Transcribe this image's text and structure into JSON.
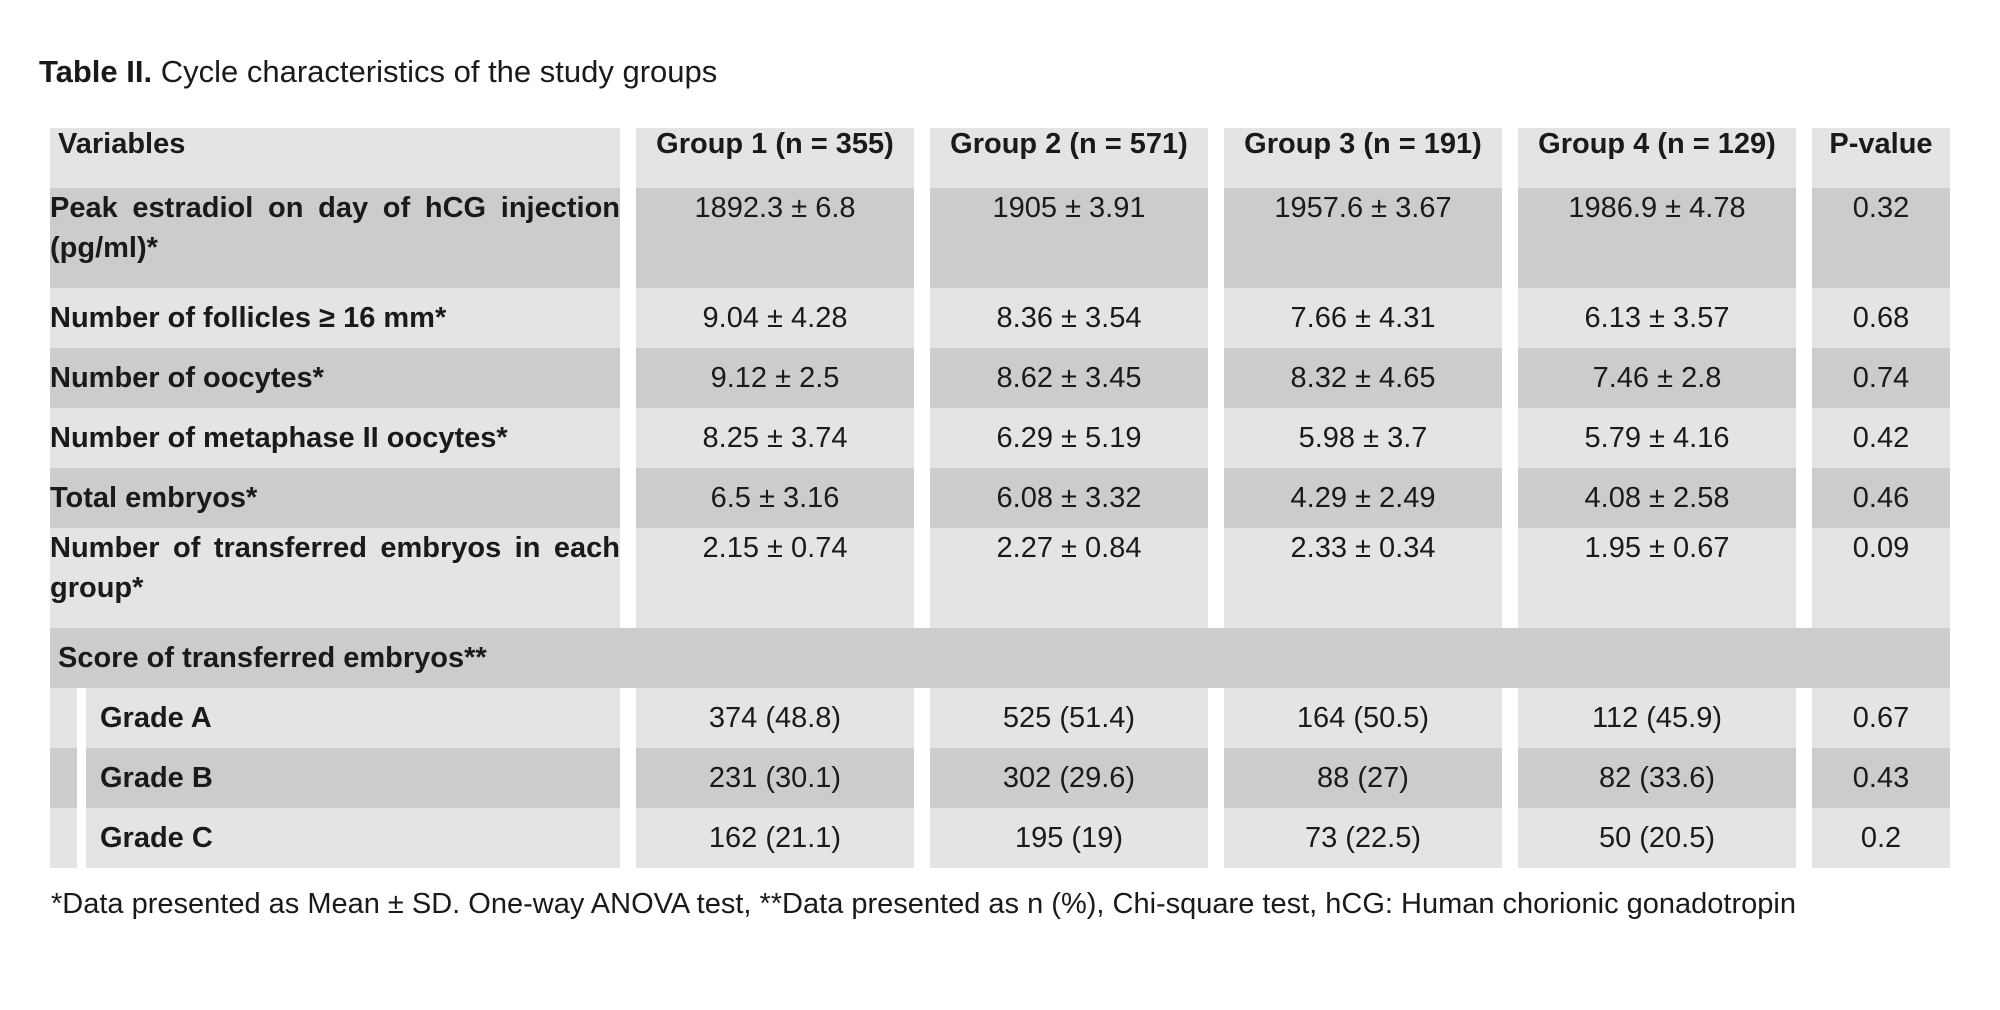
{
  "caption": {
    "label": "Table II.",
    "text": "Cycle characteristics of the study groups"
  },
  "table": {
    "headers": [
      "Variables",
      "Group 1 (n = 355)",
      "Group 2 (n = 571)",
      "Group 3 (n = 191)",
      "Group 4 (n = 129)",
      "P-value"
    ],
    "rows": [
      {
        "variable": "Peak estradiol on day of hCG injection (pg/ml)*",
        "values": [
          "1892.3 ± 6.8",
          "1905 ± 3.91",
          "1957.6 ± 3.67",
          "1986.9 ± 4.78"
        ],
        "p": "0.32"
      },
      {
        "variable": "Number of follicles ≥ 16 mm*",
        "values": [
          "9.04 ± 4.28",
          "8.36 ± 3.54",
          "7.66 ± 4.31",
          "6.13 ± 3.57"
        ],
        "p": "0.68"
      },
      {
        "variable": "Number of oocytes*",
        "values": [
          "9.12 ± 2.5",
          "8.62 ± 3.45",
          "8.32 ± 4.65",
          "7.46 ± 2.8"
        ],
        "p": "0.74"
      },
      {
        "variable": "Number of metaphase II oocytes*",
        "values": [
          "8.25 ± 3.74",
          "6.29 ± 5.19",
          "5.98 ± 3.7",
          "5.79 ± 4.16"
        ],
        "p": "0.42"
      },
      {
        "variable": "Total embryos*",
        "values": [
          "6.5 ± 3.16",
          "6.08 ± 3.32",
          "4.29 ± 2.49",
          "4.08 ± 2.58"
        ],
        "p": "0.46"
      },
      {
        "variable": "Number of transferred embryos in each group*",
        "values": [
          "2.15 ± 0.74",
          "2.27 ± 0.84",
          "2.33 ± 0.34",
          "1.95 ± 0.67"
        ],
        "p": "0.09"
      }
    ],
    "section": "Score of transferred embryos**",
    "grades": [
      {
        "variable": "Grade A",
        "values": [
          "374 (48.8)",
          "525 (51.4)",
          "164 (50.5)",
          "112 (45.9)"
        ],
        "p": "0.67"
      },
      {
        "variable": "Grade B",
        "values": [
          "231 (30.1)",
          "302 (29.6)",
          "88 (27)",
          "82 (33.6)"
        ],
        "p": "0.43"
      },
      {
        "variable": "Grade C",
        "values": [
          "162 (21.1)",
          "195 (19)",
          "73 (22.5)",
          "50 (20.5)"
        ],
        "p": "0.2"
      }
    ]
  },
  "footnote": "*Data presented as Mean ± SD. One-way ANOVA test, **Data presented as n (%), Chi-square test, hCG: Human chorionic gonadotropin"
}
